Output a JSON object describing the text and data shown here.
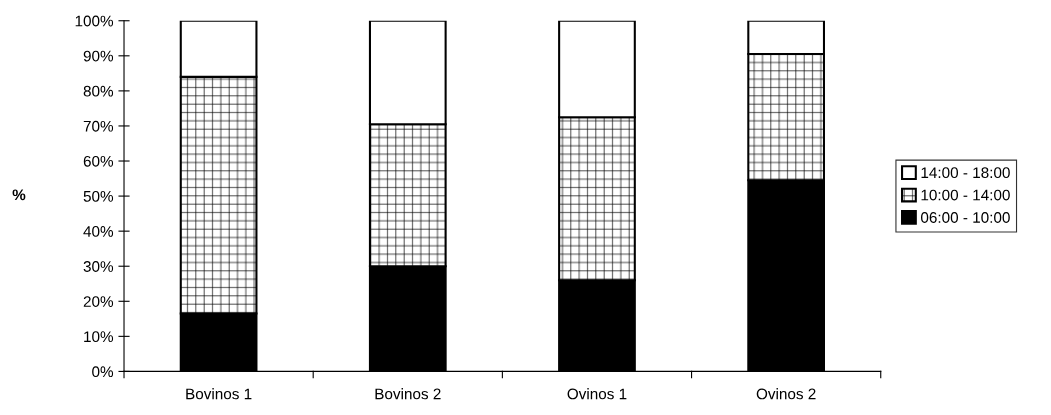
{
  "chart_data": {
    "type": "bar",
    "stacked": true,
    "ylabel": "%",
    "categories": [
      "Bovinos 1",
      "Bovinos 2",
      "Ovinos 1",
      "Ovinos 2"
    ],
    "series": [
      {
        "name": "06:00 - 10:00",
        "color": "#000000",
        "values": [
          16.5,
          30,
          26,
          54.5
        ]
      },
      {
        "name": "10:00 - 14:00",
        "color": "#000000",
        "values": [
          67.5,
          40.5,
          46.5,
          36
        ]
      },
      {
        "name": "14:00 - 18:00",
        "color": "#ffffff",
        "values": [
          16,
          29.5,
          27.5,
          9.5
        ]
      }
    ],
    "ylim": [
      0,
      100
    ],
    "yticks": [
      {
        "value": 0,
        "label": "0%"
      },
      {
        "value": 10,
        "label": "10%"
      },
      {
        "value": 20,
        "label": "20%"
      },
      {
        "value": 30,
        "label": "30%"
      },
      {
        "value": 40,
        "label": "40%"
      },
      {
        "value": 50,
        "label": "50%"
      },
      {
        "value": 60,
        "label": "60%"
      },
      {
        "value": 70,
        "label": "70%"
      },
      {
        "value": 80,
        "label": "80%"
      },
      {
        "value": 90,
        "label": "90%"
      },
      {
        "value": 100,
        "label": "100%"
      }
    ],
    "legend": "right"
  }
}
